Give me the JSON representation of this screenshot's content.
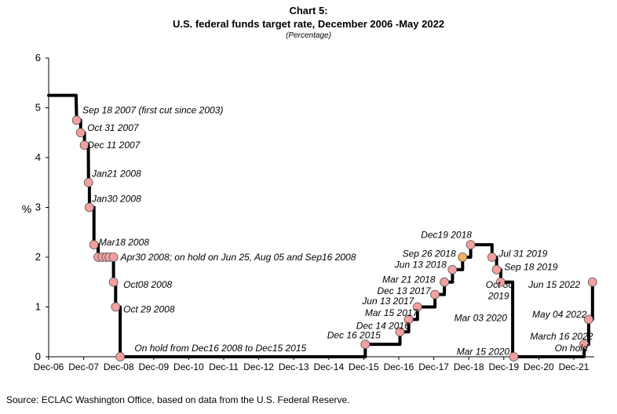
{
  "header": {
    "title_line1": "Chart 5:",
    "title_line2": "U.S. federal funds target rate, December 2006 -May 2022",
    "subtitle": "(Percentage)"
  },
  "source": "Source: ECLAC Washington Office, based on data from the U.S. Federal Reserve.",
  "chart_data": {
    "type": "line",
    "title": "U.S. federal funds target rate, December 2006 -May 2022",
    "subtitle": "(Percentage)",
    "xlabel": "",
    "ylabel": "%",
    "ylim": [
      0,
      6
    ],
    "xlim": [
      "2006-12",
      "2022-06"
    ],
    "yticks": [
      "0",
      "1",
      "2",
      "3",
      "4",
      "5",
      "6"
    ],
    "xticks": [
      {
        "label": "Dec-06",
        "t": 2006.917
      },
      {
        "label": "Dec-07",
        "t": 2007.917
      },
      {
        "label": "Dec-08",
        "t": 2008.917
      },
      {
        "label": "Dec-09",
        "t": 2009.917
      },
      {
        "label": "Dec-10",
        "t": 2010.917
      },
      {
        "label": "Dec-11",
        "t": 2011.917
      },
      {
        "label": "Dec-12",
        "t": 2012.917
      },
      {
        "label": "Dec-13",
        "t": 2013.917
      },
      {
        "label": "Dec-14",
        "t": 2014.917
      },
      {
        "label": "Dec-15",
        "t": 2015.917
      },
      {
        "label": "Dec-16",
        "t": 2016.917
      },
      {
        "label": "Dec-17",
        "t": 2017.917
      },
      {
        "label": "Dec-18",
        "t": 2018.917
      },
      {
        "label": "Dec-19",
        "t": 2019.917
      },
      {
        "label": "Dec-20",
        "t": 2020.917
      },
      {
        "label": "Dec-21",
        "t": 2021.917
      }
    ],
    "grid": false,
    "legend": "none",
    "line_color": "#000000",
    "marker_color": "#f2a0a0",
    "highlight_color": "#f5b060",
    "series": [
      {
        "name": "",
        "points": [
          [
            2006.917,
            5.25
          ],
          [
            2007.7,
            5.25
          ],
          [
            2007.715,
            4.75
          ],
          [
            2007.83,
            4.75
          ],
          [
            2007.83,
            4.5
          ],
          [
            2007.94,
            4.5
          ],
          [
            2007.94,
            4.25
          ],
          [
            2008.05,
            4.25
          ],
          [
            2008.055,
            3.5
          ],
          [
            2008.08,
            3.5
          ],
          [
            2008.08,
            3.0
          ],
          [
            2008.21,
            3.0
          ],
          [
            2008.21,
            2.25
          ],
          [
            2008.33,
            2.25
          ],
          [
            2008.33,
            2.0
          ],
          [
            2008.77,
            2.0
          ],
          [
            2008.77,
            1.5
          ],
          [
            2008.83,
            1.5
          ],
          [
            2008.83,
            1.0
          ],
          [
            2008.96,
            1.0
          ],
          [
            2008.96,
            0.0
          ],
          [
            2015.96,
            0.0
          ],
          [
            2015.96,
            0.25
          ],
          [
            2016.95,
            0.25
          ],
          [
            2016.95,
            0.5
          ],
          [
            2017.2,
            0.5
          ],
          [
            2017.2,
            0.75
          ],
          [
            2017.45,
            0.75
          ],
          [
            2017.45,
            1.0
          ],
          [
            2017.95,
            1.0
          ],
          [
            2017.95,
            1.25
          ],
          [
            2018.22,
            1.25
          ],
          [
            2018.22,
            1.5
          ],
          [
            2018.45,
            1.5
          ],
          [
            2018.45,
            1.75
          ],
          [
            2018.74,
            1.75
          ],
          [
            2018.74,
            2.0
          ],
          [
            2018.97,
            2.0
          ],
          [
            2018.97,
            2.25
          ],
          [
            2019.58,
            2.25
          ],
          [
            2019.58,
            2.0
          ],
          [
            2019.71,
            2.0
          ],
          [
            2019.71,
            1.75
          ],
          [
            2019.83,
            1.75
          ],
          [
            2019.83,
            1.5
          ],
          [
            2020.17,
            1.5
          ],
          [
            2020.17,
            0.0
          ],
          [
            2022.21,
            0.0
          ],
          [
            2022.21,
            0.25
          ],
          [
            2022.34,
            0.25
          ],
          [
            2022.34,
            0.75
          ],
          [
            2022.45,
            0.75
          ],
          [
            2022.45,
            1.5
          ]
        ]
      }
    ],
    "markers": [
      {
        "t": 2007.715,
        "v": 4.75
      },
      {
        "t": 2007.83,
        "v": 4.5
      },
      {
        "t": 2007.94,
        "v": 4.25
      },
      {
        "t": 2008.055,
        "v": 3.5
      },
      {
        "t": 2008.08,
        "v": 3.0
      },
      {
        "t": 2008.21,
        "v": 2.25
      },
      {
        "t": 2008.33,
        "v": 2.0
      },
      {
        "t": 2008.45,
        "v": 2.0
      },
      {
        "t": 2008.56,
        "v": 2.0
      },
      {
        "t": 2008.65,
        "v": 2.0
      },
      {
        "t": 2008.77,
        "v": 2.0
      },
      {
        "t": 2008.77,
        "v": 1.5
      },
      {
        "t": 2008.83,
        "v": 1.0
      },
      {
        "t": 2008.96,
        "v": 0.0
      },
      {
        "t": 2015.96,
        "v": 0.25
      },
      {
        "t": 2016.95,
        "v": 0.5
      },
      {
        "t": 2017.2,
        "v": 0.75
      },
      {
        "t": 2017.45,
        "v": 1.0
      },
      {
        "t": 2017.95,
        "v": 1.25
      },
      {
        "t": 2018.22,
        "v": 1.5
      },
      {
        "t": 2018.45,
        "v": 1.75
      },
      {
        "t": 2018.74,
        "v": 2.0,
        "highlight": true
      },
      {
        "t": 2018.97,
        "v": 2.25
      },
      {
        "t": 2019.58,
        "v": 2.0
      },
      {
        "t": 2019.71,
        "v": 1.75
      },
      {
        "t": 2019.83,
        "v": 1.5
      },
      {
        "t": 2020.2,
        "v": 0.0
      },
      {
        "t": 2022.21,
        "v": 0.25
      },
      {
        "t": 2022.34,
        "v": 0.75
      },
      {
        "t": 2022.45,
        "v": 1.5
      }
    ],
    "annotations": [
      {
        "text": "Sep 18 2007 (first cut since 2003)",
        "t": 2007.88,
        "v": 4.95,
        "anchor": "start"
      },
      {
        "text": "Oct 31 2007",
        "t": 2008.02,
        "v": 4.6,
        "anchor": "start"
      },
      {
        "text": "Dec 11 2007",
        "t": 2008.02,
        "v": 4.25,
        "anchor": "start"
      },
      {
        "text": "Jan21 2008",
        "t": 2008.15,
        "v": 3.68,
        "anchor": "start"
      },
      {
        "text": "Jan30 2008",
        "t": 2008.15,
        "v": 3.17,
        "anchor": "start"
      },
      {
        "text": "Mar18 2008",
        "t": 2008.35,
        "v": 2.3,
        "anchor": "start"
      },
      {
        "text": "Apr30 2008; on hold on Jun 25, Aug 05 and Sep16 2008",
        "t": 2008.97,
        "v": 2.0,
        "anchor": "start"
      },
      {
        "text": "Oct08 2008",
        "t": 2009.05,
        "v": 1.45,
        "anchor": "start"
      },
      {
        "text": "Oct 29 2008",
        "t": 2009.05,
        "v": 0.95,
        "anchor": "start"
      },
      {
        "text": "On hold from Dec16 2008 to Dec15 2015",
        "t": 2009.37,
        "v": 0.17,
        "anchor": "start"
      },
      {
        "text": "Dec 16 2015",
        "t": 2014.87,
        "v": 0.43,
        "anchor": "start"
      },
      {
        "text": "Dec 14 2016",
        "t": 2015.7,
        "v": 0.62,
        "anchor": "start"
      },
      {
        "text": "Mar 15 2017",
        "t": 2015.95,
        "v": 0.88,
        "anchor": "start"
      },
      {
        "text": "Jun 13 2017",
        "t": 2015.87,
        "v": 1.12,
        "anchor": "start"
      },
      {
        "text": "Dec 13 2017",
        "t": 2016.3,
        "v": 1.32,
        "anchor": "start"
      },
      {
        "text": "Mar 21 2018",
        "t": 2016.45,
        "v": 1.55,
        "anchor": "start"
      },
      {
        "text": "Jun 13 2018",
        "t": 2016.8,
        "v": 1.85,
        "anchor": "start"
      },
      {
        "text": "Sep 26 2018",
        "t": 2017.02,
        "v": 2.07,
        "anchor": "start"
      },
      {
        "text": "Dec19 2018",
        "t": 2017.55,
        "v": 2.45,
        "anchor": "start"
      },
      {
        "text": "Jul 31 2019",
        "t": 2019.77,
        "v": 2.07,
        "anchor": "start"
      },
      {
        "text": "Sep 18 2019",
        "t": 2019.93,
        "v": 1.8,
        "anchor": "start"
      },
      {
        "text": "Oct 30",
        "t": 2019.4,
        "v": 1.45,
        "anchor": "start"
      },
      {
        "text": "2019",
        "t": 2019.47,
        "v": 1.22,
        "anchor": "start"
      },
      {
        "text": "Jun 15 2022",
        "t": 2020.62,
        "v": 1.45,
        "anchor": "start"
      },
      {
        "text": "Mar  03 2020",
        "t": 2018.5,
        "v": 0.78,
        "anchor": "start"
      },
      {
        "text": "May 04 2022",
        "t": 2020.73,
        "v": 0.85,
        "anchor": "start"
      },
      {
        "text": "March 16 2022",
        "t": 2020.67,
        "v": 0.41,
        "anchor": "start"
      },
      {
        "text": "On hold",
        "t": 2021.37,
        "v": 0.17,
        "anchor": "start"
      },
      {
        "text": "Mar 15 2020",
        "t": 2018.57,
        "v": 0.1,
        "anchor": "start"
      }
    ]
  }
}
